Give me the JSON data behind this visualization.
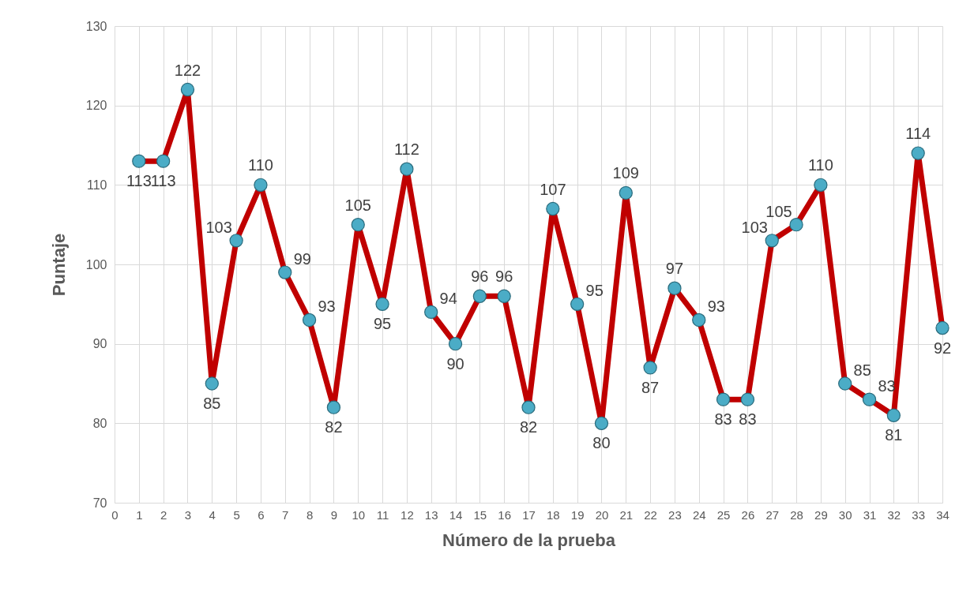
{
  "chart_data": {
    "type": "line",
    "xlabel": "Número de la prueba",
    "ylabel": "Puntaje",
    "x": [
      1,
      2,
      3,
      4,
      5,
      6,
      7,
      8,
      9,
      10,
      11,
      12,
      13,
      14,
      15,
      16,
      17,
      18,
      19,
      20,
      21,
      22,
      23,
      24,
      25,
      26,
      27,
      28,
      29,
      30,
      31,
      32,
      33,
      34
    ],
    "series": [
      {
        "color": "#c00000",
        "values": [
          113,
          113,
          122,
          85,
          103,
          110,
          99,
          93,
          82,
          105,
          95,
          112,
          94,
          90,
          96,
          96,
          82,
          107,
          95,
          80,
          109,
          87,
          97,
          93,
          83,
          83,
          103,
          105,
          110,
          85,
          83,
          81,
          114,
          92
        ]
      }
    ],
    "xlim": [
      0,
      34
    ],
    "xticks": [
      0,
      1,
      2,
      3,
      4,
      5,
      6,
      7,
      8,
      9,
      10,
      11,
      12,
      13,
      14,
      15,
      16,
      17,
      18,
      19,
      20,
      21,
      22,
      23,
      24,
      25,
      26,
      27,
      28,
      29,
      30,
      31,
      32,
      33,
      34
    ],
    "ylim": [
      70,
      130
    ],
    "yticks": [
      70,
      80,
      90,
      100,
      110,
      120,
      130
    ],
    "grid": true,
    "marker": "circle",
    "line_style": "solid",
    "data_labels": true
  }
}
